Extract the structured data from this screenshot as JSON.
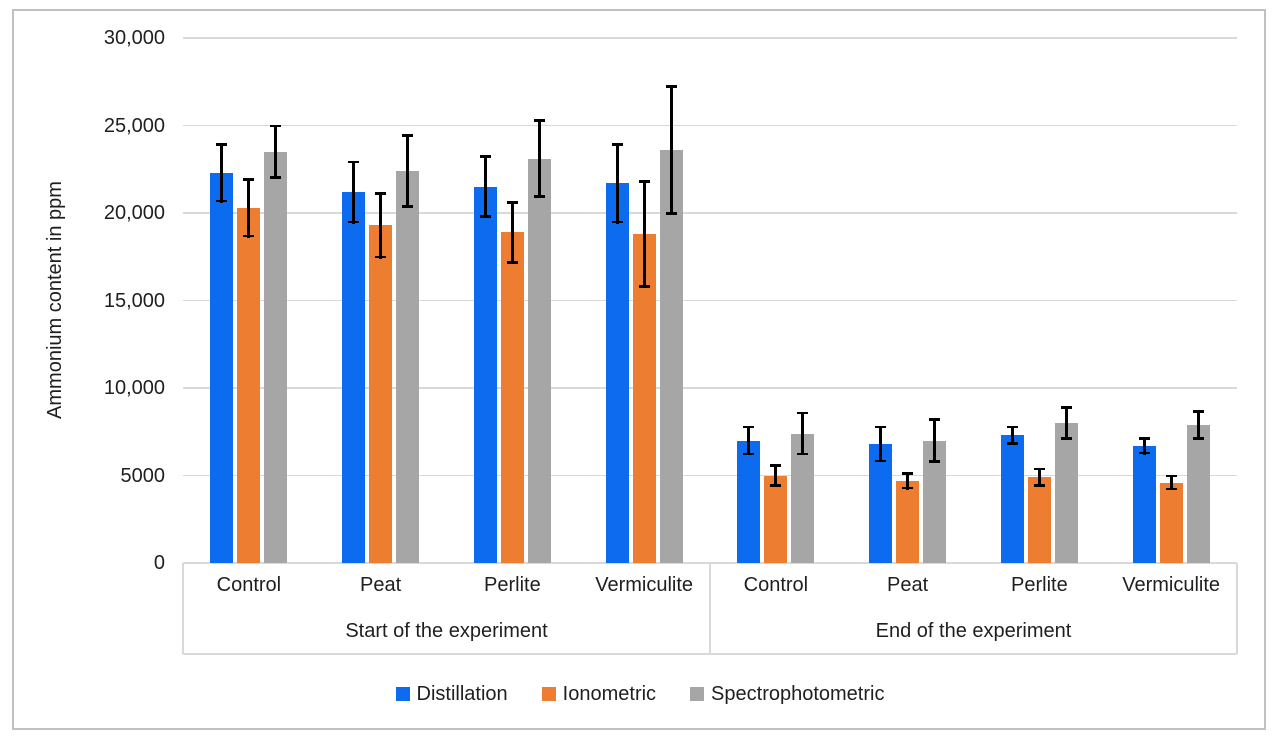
{
  "chart_data": {
    "type": "bar",
    "title": "",
    "xlabel": "",
    "ylabel": "Ammonium content in ppm",
    "ylim": [
      0,
      30000
    ],
    "grid": true,
    "legend_position": "bottom",
    "yticks": [
      {
        "value": 0,
        "label": "0"
      },
      {
        "value": 5000,
        "label": "5000"
      },
      {
        "value": 10000,
        "label": "10,000"
      },
      {
        "value": 15000,
        "label": "15,000"
      },
      {
        "value": 20000,
        "label": "20,000"
      },
      {
        "value": 25000,
        "label": "25,000"
      },
      {
        "value": 30000,
        "label": "30,000"
      }
    ],
    "group_labels": [
      "Start of the experiment",
      "End of the experiment"
    ],
    "categories": [
      "Control",
      "Peat",
      "Perlite",
      "Vermiculite",
      "Control",
      "Peat",
      "Perlite",
      "Vermiculite"
    ],
    "series": [
      {
        "name": "Distillation",
        "color": "#0d6bf0",
        "values": [
          22300,
          21200,
          21500,
          21700,
          7000,
          6800,
          7300,
          6700
        ],
        "errors": [
          1700,
          1800,
          1800,
          2300,
          850,
          1050,
          550,
          500
        ]
      },
      {
        "name": "Ionometric",
        "color": "#ed7d31",
        "values": [
          20300,
          19300,
          18900,
          18800,
          5000,
          4700,
          4900,
          4600
        ],
        "errors": [
          1700,
          1900,
          1800,
          3100,
          650,
          500,
          550,
          450
        ]
      },
      {
        "name": "Spectrophotometric",
        "color": "#a6a6a6",
        "values": [
          23500,
          22400,
          23100,
          23600,
          7400,
          7000,
          8000,
          7900
        ],
        "errors": [
          1550,
          2100,
          2250,
          3700,
          1250,
          1300,
          950,
          850
        ]
      }
    ],
    "error_bar_color": "#000000"
  },
  "colors": {
    "figure_border": "#c0c0c0",
    "gridline": "#d9d9d9",
    "axis_text": "#1f1f1f",
    "background": "#ffffff"
  }
}
